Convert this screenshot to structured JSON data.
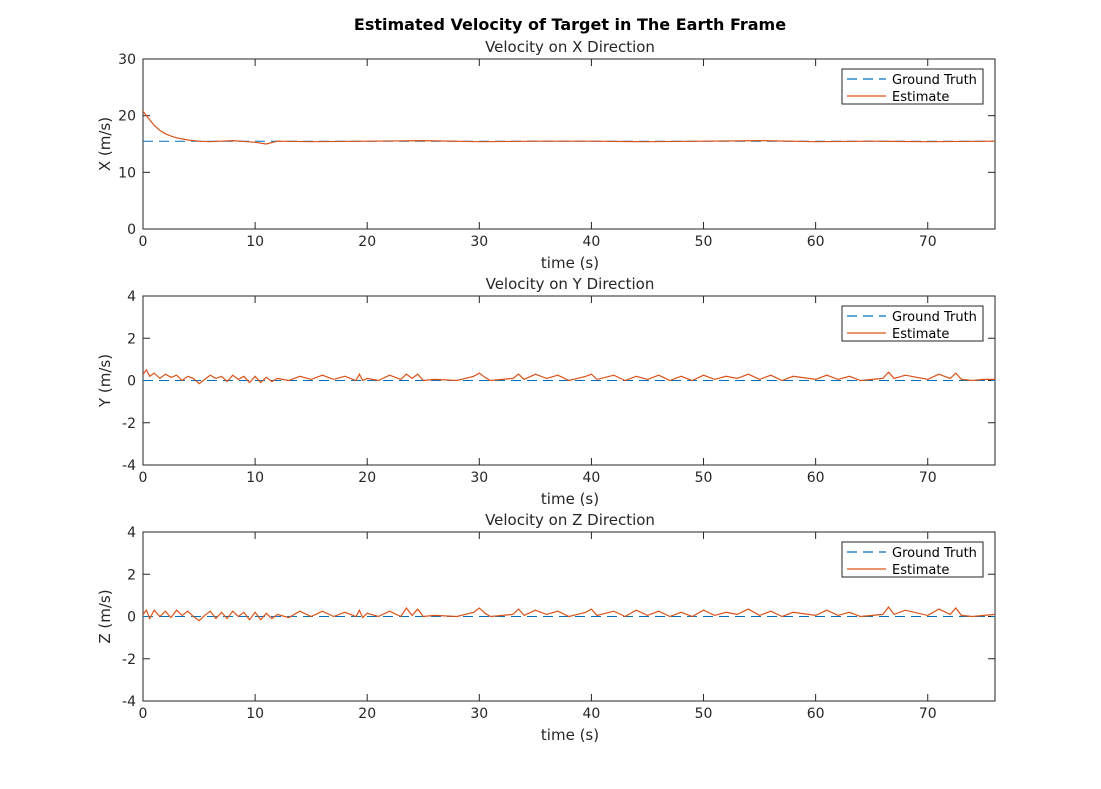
{
  "figure": {
    "title": "Estimated Velocity of Target in The Earth Frame"
  },
  "colors": {
    "ground_truth": "#0072BD",
    "estimate": "#D95319"
  },
  "chart_data": [
    {
      "type": "line",
      "title": "Velocity on X Direction",
      "xlabel": "time (s)",
      "ylabel": "X (m/s)",
      "xlim": [
        0,
        76
      ],
      "ylim": [
        0,
        30
      ],
      "xticks": [
        0,
        10,
        20,
        30,
        40,
        50,
        60,
        70
      ],
      "yticks": [
        0,
        10,
        20,
        30
      ],
      "legend": "top-right",
      "grid": false,
      "series": [
        {
          "name": "Ground Truth",
          "style": "dashed",
          "x": [
            0,
            76
          ],
          "y": [
            15.5,
            15.5
          ]
        },
        {
          "name": "Estimate",
          "style": "solid",
          "x": [
            0,
            0.5,
            1,
            1.5,
            2,
            2.5,
            3,
            3.5,
            4,
            5,
            6,
            8,
            10,
            11,
            12,
            15,
            20,
            25,
            30,
            35,
            40,
            45,
            50,
            55,
            60,
            65,
            70,
            76
          ],
          "y": [
            20.8,
            19.5,
            18.3,
            17.4,
            16.8,
            16.4,
            16.1,
            15.9,
            15.7,
            15.5,
            15.4,
            15.6,
            15.3,
            15.0,
            15.5,
            15.4,
            15.5,
            15.6,
            15.4,
            15.5,
            15.5,
            15.4,
            15.5,
            15.6,
            15.4,
            15.5,
            15.4,
            15.5
          ]
        }
      ]
    },
    {
      "type": "line",
      "title": "Velocity on Y Direction",
      "xlabel": "time (s)",
      "ylabel": "Y (m/s)",
      "xlim": [
        0,
        76
      ],
      "ylim": [
        -4,
        4
      ],
      "xticks": [
        0,
        10,
        20,
        30,
        40,
        50,
        60,
        70
      ],
      "yticks": [
        -4,
        -2,
        0,
        2,
        4
      ],
      "legend": "top-right",
      "grid": false,
      "series": [
        {
          "name": "Ground Truth",
          "style": "dashed",
          "x": [
            0,
            76
          ],
          "y": [
            0,
            0
          ]
        },
        {
          "name": "Estimate",
          "style": "solid",
          "x": [
            0,
            0.3,
            0.6,
            1,
            1.5,
            2,
            2.5,
            3,
            3.5,
            4,
            4.5,
            5,
            5.5,
            6,
            6.5,
            7,
            7.5,
            8,
            8.5,
            9,
            9.5,
            10,
            10.5,
            11,
            11.5,
            12,
            13,
            14,
            15,
            16,
            17,
            18,
            19,
            19.3,
            19.6,
            20,
            21,
            22,
            23,
            23.5,
            24,
            24.5,
            25,
            26,
            28,
            29.5,
            30,
            30.5,
            31,
            33,
            33.5,
            34,
            35,
            36,
            37,
            38,
            39.5,
            40,
            40.5,
            42,
            43,
            44,
            45,
            46,
            47,
            48,
            49,
            50,
            51,
            52,
            53,
            54,
            55,
            56,
            57,
            58,
            60,
            61,
            62,
            63,
            64,
            66,
            66.5,
            67,
            68,
            70,
            71,
            72,
            72.5,
            73,
            74,
            75,
            76
          ],
          "y": [
            0.3,
            0.5,
            0.2,
            0.35,
            0.1,
            0.3,
            0.15,
            0.25,
            0.0,
            0.2,
            0.1,
            -0.15,
            0.05,
            0.25,
            0.1,
            0.2,
            -0.05,
            0.25,
            0.05,
            0.2,
            -0.1,
            0.2,
            -0.1,
            0.15,
            -0.05,
            0.1,
            0.0,
            0.2,
            0.05,
            0.25,
            0.05,
            0.2,
            0.0,
            0.3,
            0.0,
            0.1,
            0.0,
            0.25,
            0.05,
            0.3,
            0.1,
            0.3,
            0.0,
            0.05,
            0.0,
            0.2,
            0.35,
            0.15,
            0.0,
            0.1,
            0.3,
            0.05,
            0.3,
            0.1,
            0.25,
            0.0,
            0.2,
            0.3,
            0.05,
            0.25,
            0.0,
            0.2,
            0.05,
            0.25,
            0.0,
            0.2,
            0.0,
            0.25,
            0.05,
            0.2,
            0.1,
            0.3,
            0.05,
            0.25,
            0.0,
            0.2,
            0.05,
            0.25,
            0.05,
            0.2,
            0.0,
            0.1,
            0.4,
            0.1,
            0.25,
            0.05,
            0.3,
            0.1,
            0.35,
            0.05,
            0.0,
            0.05,
            0.05
          ]
        }
      ]
    },
    {
      "type": "line",
      "title": "Velocity on Z Direction",
      "xlabel": "time (s)",
      "ylabel": "Z (m/s)",
      "xlim": [
        0,
        76
      ],
      "ylim": [
        -4,
        4
      ],
      "xticks": [
        0,
        10,
        20,
        30,
        40,
        50,
        60,
        70
      ],
      "yticks": [
        -4,
        -2,
        0,
        2,
        4
      ],
      "legend": "top-right",
      "grid": false,
      "series": [
        {
          "name": "Ground Truth",
          "style": "dashed",
          "x": [
            0,
            76
          ],
          "y": [
            0,
            0
          ]
        },
        {
          "name": "Estimate",
          "style": "solid",
          "x": [
            0,
            0.3,
            0.6,
            1,
            1.5,
            2,
            2.5,
            3,
            3.5,
            4,
            4.5,
            5,
            5.5,
            6,
            6.5,
            7,
            7.5,
            8,
            8.5,
            9,
            9.5,
            10,
            10.5,
            11,
            11.5,
            12,
            13,
            14,
            15,
            16,
            17,
            18,
            19,
            19.3,
            19.6,
            20,
            21,
            22,
            23,
            23.5,
            24,
            24.5,
            25,
            26,
            28,
            29.5,
            30,
            30.5,
            31,
            33,
            33.5,
            34,
            35,
            36,
            37,
            38,
            39.5,
            40,
            40.5,
            42,
            43,
            44,
            45,
            46,
            47,
            48,
            49,
            50,
            51,
            52,
            53,
            54,
            55,
            56,
            57,
            58,
            60,
            61,
            62,
            63,
            64,
            66,
            66.5,
            67,
            68,
            70,
            71,
            72,
            72.5,
            73,
            74,
            75,
            76
          ],
          "y": [
            0.1,
            0.3,
            -0.1,
            0.3,
            0.0,
            0.25,
            -0.05,
            0.3,
            0.05,
            0.25,
            0.0,
            -0.2,
            0.05,
            0.25,
            -0.1,
            0.2,
            -0.1,
            0.25,
            0.0,
            0.2,
            -0.15,
            0.2,
            -0.15,
            0.15,
            -0.1,
            0.1,
            -0.05,
            0.25,
            0.0,
            0.25,
            0.0,
            0.2,
            0.0,
            0.3,
            -0.05,
            0.15,
            0.0,
            0.25,
            0.0,
            0.4,
            0.05,
            0.35,
            0.0,
            0.05,
            0.0,
            0.2,
            0.4,
            0.15,
            0.0,
            0.1,
            0.35,
            0.05,
            0.3,
            0.1,
            0.25,
            0.0,
            0.2,
            0.35,
            0.05,
            0.25,
            0.0,
            0.3,
            0.05,
            0.25,
            0.0,
            0.2,
            0.0,
            0.3,
            0.05,
            0.2,
            0.1,
            0.35,
            0.05,
            0.25,
            0.0,
            0.2,
            0.05,
            0.3,
            0.05,
            0.2,
            0.0,
            0.1,
            0.45,
            0.1,
            0.3,
            0.05,
            0.35,
            0.1,
            0.4,
            0.05,
            0.0,
            0.05,
            0.1
          ]
        }
      ]
    }
  ]
}
